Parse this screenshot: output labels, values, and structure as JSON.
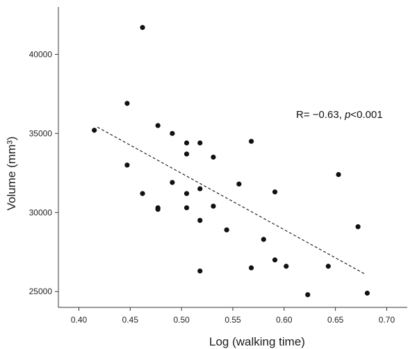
{
  "chart_data": {
    "type": "scatter",
    "xlabel": "Log (walking time)",
    "ylabel": "Volume (mm³)",
    "annotation": {
      "prefix": "R= −0.63, ",
      "p_symbol": "p",
      "suffix": "<0.001"
    },
    "xlim": [
      0.38,
      0.72
    ],
    "ylim": [
      24000,
      43000
    ],
    "x_ticks": [
      {
        "value": 0.4,
        "label": "0.40"
      },
      {
        "value": 0.45,
        "label": "0.45"
      },
      {
        "value": 0.5,
        "label": "0.50"
      },
      {
        "value": 0.55,
        "label": "0.55"
      },
      {
        "value": 0.6,
        "label": "0.60"
      },
      {
        "value": 0.65,
        "label": "0.65"
      },
      {
        "value": 0.7,
        "label": "0.70"
      }
    ],
    "y_ticks": [
      {
        "value": 25000,
        "label": "25000"
      },
      {
        "value": 30000,
        "label": "30000"
      },
      {
        "value": 35000,
        "label": "35000"
      },
      {
        "value": 40000,
        "label": "40000"
      }
    ],
    "points": [
      {
        "x": 0.415,
        "y": 35200
      },
      {
        "x": 0.447,
        "y": 36900
      },
      {
        "x": 0.447,
        "y": 33000
      },
      {
        "x": 0.462,
        "y": 41700
      },
      {
        "x": 0.462,
        "y": 31200
      },
      {
        "x": 0.477,
        "y": 35500
      },
      {
        "x": 0.477,
        "y": 30300
      },
      {
        "x": 0.477,
        "y": 30200
      },
      {
        "x": 0.491,
        "y": 35000
      },
      {
        "x": 0.491,
        "y": 31900
      },
      {
        "x": 0.505,
        "y": 34400
      },
      {
        "x": 0.505,
        "y": 33700
      },
      {
        "x": 0.505,
        "y": 31200
      },
      {
        "x": 0.505,
        "y": 30300
      },
      {
        "x": 0.518,
        "y": 34400
      },
      {
        "x": 0.518,
        "y": 31500
      },
      {
        "x": 0.518,
        "y": 29500
      },
      {
        "x": 0.518,
        "y": 26300
      },
      {
        "x": 0.531,
        "y": 33500
      },
      {
        "x": 0.531,
        "y": 30400
      },
      {
        "x": 0.544,
        "y": 28900
      },
      {
        "x": 0.556,
        "y": 31800
      },
      {
        "x": 0.568,
        "y": 34500
      },
      {
        "x": 0.568,
        "y": 26500
      },
      {
        "x": 0.58,
        "y": 28300
      },
      {
        "x": 0.591,
        "y": 31300
      },
      {
        "x": 0.591,
        "y": 27000
      },
      {
        "x": 0.602,
        "y": 26600
      },
      {
        "x": 0.623,
        "y": 24800
      },
      {
        "x": 0.643,
        "y": 26600
      },
      {
        "x": 0.653,
        "y": 32400
      },
      {
        "x": 0.672,
        "y": 29100
      },
      {
        "x": 0.681,
        "y": 24900
      }
    ],
    "fit_line": {
      "style": "dashed",
      "start": {
        "x": 0.418,
        "y": 35400
      },
      "end": {
        "x": 0.679,
        "y": 26100
      }
    }
  },
  "colors": {
    "points": "#111111",
    "axis": "#333333",
    "fit_line": "#111111"
  }
}
